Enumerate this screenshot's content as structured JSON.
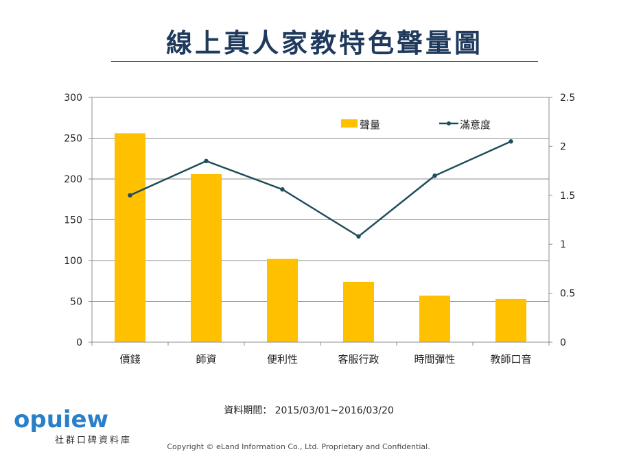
{
  "chart_data": {
    "type": "bar+line",
    "title": "線上真人家教特色聲量圖",
    "categories": [
      "價錢",
      "師資",
      "便利性",
      "客服行政",
      "時間彈性",
      "教師口音"
    ],
    "series": [
      {
        "name": "聲量",
        "type": "bar",
        "axis": "left",
        "color": "#ffc000",
        "values": [
          256,
          206,
          102,
          74,
          57,
          53
        ]
      },
      {
        "name": "滿意度",
        "type": "line",
        "axis": "right",
        "color": "#1f4e5a",
        "values": [
          1.5,
          1.85,
          1.56,
          1.08,
          1.7,
          2.05
        ]
      }
    ],
    "y_left": {
      "min": 0,
      "max": 300,
      "ticks": [
        0,
        50,
        100,
        150,
        200,
        250,
        300
      ]
    },
    "y_right": {
      "min": 0,
      "max": 2.5,
      "ticks": [
        "0",
        "0.5",
        "1",
        "1.5",
        "2",
        "2.5"
      ]
    },
    "grid": true,
    "legend_position": "top-right"
  },
  "footer": {
    "period": "資料期間： 2015/03/01~2016/03/20",
    "logo_word": "opuiew",
    "logo_sub": "社群口碑資料庫",
    "copyright": "Copyright  © eLand Information Co., Ltd. Proprietary and Confidential."
  }
}
